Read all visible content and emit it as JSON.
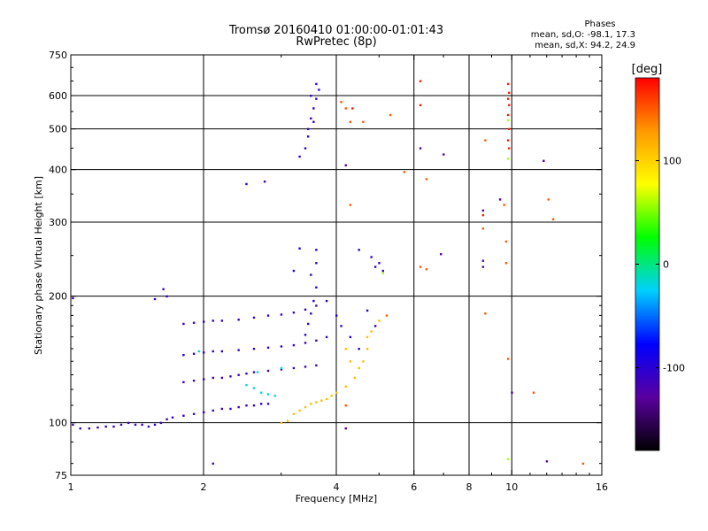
{
  "header": {
    "title": "Tromsø 20160410 01:00:00-01:01:43",
    "subtitle": "RwPretec (8p)"
  },
  "phase_info": {
    "heading": "Phases",
    "line_o": "mean, sd,O: -98.1, 17.3",
    "line_x": "mean, sd,X: 94.2, 24.9"
  },
  "chart_data": {
    "type": "scatter",
    "title": "Tromsø 20160410 01:00:00-01:01:43",
    "subtitle": "RwPretec (8p)",
    "xlabel": "Frequency [MHz]",
    "ylabel": "Stationary phase Virtual Height [km]",
    "x_scale": "log",
    "y_scale": "log",
    "xlim": [
      1,
      16
    ],
    "ylim": [
      75,
      750
    ],
    "x_ticks": [
      1,
      2,
      4,
      6,
      8,
      10,
      16
    ],
    "x_tick_labels": [
      "1",
      "2",
      "4",
      "6",
      "8",
      "10",
      "16"
    ],
    "y_ticks": [
      75,
      100,
      200,
      300,
      400,
      500,
      600,
      750
    ],
    "y_tick_labels": [
      "75",
      "100",
      "200",
      "300",
      "400",
      "500",
      "600",
      "750"
    ],
    "grid": true,
    "colorbar": {
      "label": "[deg]",
      "range": [
        -180,
        180
      ],
      "ticks": [
        100,
        0,
        -100
      ],
      "tick_labels": [
        "100",
        "0",
        "-100"
      ],
      "colors": [
        "#000000",
        "#5a00a0",
        "#0000ff",
        "#00d0ff",
        "#00ff00",
        "#ffff00",
        "#ff9900",
        "#ff0000"
      ]
    },
    "series": [
      {
        "phase": -110,
        "points": [
          [
            1.01,
            99
          ],
          [
            1.05,
            97
          ],
          [
            1.1,
            97
          ],
          [
            1.15,
            97.5
          ],
          [
            1.2,
            98
          ],
          [
            1.25,
            98
          ],
          [
            1.3,
            99
          ],
          [
            1.35,
            100
          ],
          [
            1.4,
            99
          ],
          [
            1.45,
            99
          ],
          [
            1.5,
            98
          ],
          [
            1.55,
            99
          ],
          [
            1.6,
            100
          ],
          [
            1.65,
            102
          ],
          [
            1.7,
            103
          ],
          [
            1.8,
            104
          ],
          [
            1.9,
            105
          ],
          [
            2.0,
            106
          ],
          [
            2.1,
            107
          ],
          [
            2.2,
            108
          ],
          [
            2.3,
            108
          ],
          [
            2.4,
            109
          ],
          [
            2.5,
            110
          ],
          [
            2.6,
            110
          ],
          [
            2.7,
            111
          ],
          [
            2.8,
            111
          ],
          [
            1.01,
            198
          ],
          [
            1.55,
            197
          ],
          [
            1.65,
            200
          ],
          [
            1.62,
            208
          ]
        ]
      },
      {
        "phase": -110,
        "points": [
          [
            1.8,
            125
          ],
          [
            1.9,
            126
          ],
          [
            2.0,
            127
          ],
          [
            2.1,
            128
          ],
          [
            2.2,
            128
          ],
          [
            2.3,
            129
          ],
          [
            2.4,
            130
          ],
          [
            2.5,
            131
          ],
          [
            2.6,
            132
          ],
          [
            2.8,
            133
          ],
          [
            3.0,
            134
          ],
          [
            3.2,
            135
          ],
          [
            3.4,
            136
          ],
          [
            3.6,
            137
          ]
        ]
      },
      {
        "phase": -105,
        "points": [
          [
            1.8,
            145
          ],
          [
            1.9,
            146
          ],
          [
            2.0,
            147
          ],
          [
            2.1,
            148
          ],
          [
            2.2,
            148
          ],
          [
            2.4,
            149
          ],
          [
            2.6,
            150
          ],
          [
            2.8,
            151
          ],
          [
            3.0,
            152
          ],
          [
            3.2,
            153
          ],
          [
            3.4,
            155
          ],
          [
            3.6,
            157
          ],
          [
            3.8,
            160
          ]
        ]
      },
      {
        "phase": -110,
        "points": [
          [
            1.8,
            172
          ],
          [
            1.9,
            173
          ],
          [
            2.0,
            174
          ],
          [
            2.1,
            175
          ],
          [
            2.2,
            175
          ],
          [
            2.4,
            176
          ],
          [
            2.6,
            178
          ],
          [
            2.8,
            180
          ],
          [
            3.0,
            181
          ],
          [
            3.2,
            183
          ],
          [
            3.4,
            186
          ],
          [
            3.6,
            190
          ]
        ]
      },
      {
        "phase": -100,
        "points": [
          [
            3.4,
            162
          ],
          [
            3.45,
            172
          ],
          [
            3.5,
            182
          ],
          [
            3.55,
            195
          ],
          [
            3.6,
            210
          ],
          [
            3.5,
            225
          ],
          [
            3.6,
            240
          ],
          [
            3.3,
            260
          ],
          [
            3.2,
            230
          ],
          [
            3.6,
            258
          ],
          [
            3.8,
            195
          ],
          [
            4.0,
            180
          ],
          [
            4.1,
            170
          ],
          [
            4.3,
            160
          ],
          [
            4.5,
            150
          ],
          [
            4.7,
            185
          ],
          [
            4.9,
            170
          ]
        ]
      },
      {
        "phase": -105,
        "points": [
          [
            3.45,
            500
          ],
          [
            3.5,
            530
          ],
          [
            3.55,
            560
          ],
          [
            3.6,
            590
          ],
          [
            3.65,
            620
          ],
          [
            3.6,
            640
          ],
          [
            3.5,
            600
          ],
          [
            3.55,
            520
          ],
          [
            3.45,
            480
          ],
          [
            3.3,
            430
          ],
          [
            3.4,
            450
          ],
          [
            2.5,
            370
          ],
          [
            2.75,
            375
          ],
          [
            4.5,
            258
          ],
          [
            4.8,
            248
          ],
          [
            5.0,
            240
          ],
          [
            5.1,
            230
          ],
          [
            4.9,
            235
          ]
        ]
      },
      {
        "phase": -20,
        "points": [
          [
            2.5,
            123
          ],
          [
            2.6,
            121
          ],
          [
            2.7,
            118
          ],
          [
            2.8,
            117
          ],
          [
            2.9,
            116
          ],
          [
            3.0,
            135
          ],
          [
            2.65,
            132
          ],
          [
            1.95,
            148
          ]
        ]
      },
      {
        "phase": 110,
        "points": [
          [
            3.0,
            100
          ],
          [
            3.1,
            101
          ],
          [
            3.2,
            105
          ],
          [
            3.3,
            107
          ],
          [
            3.4,
            109
          ],
          [
            3.5,
            111
          ],
          [
            3.6,
            112
          ],
          [
            3.7,
            113
          ],
          [
            3.8,
            114
          ],
          [
            3.9,
            116
          ],
          [
            4.0,
            118
          ],
          [
            4.2,
            122
          ],
          [
            4.4,
            128
          ],
          [
            4.5,
            135
          ],
          [
            4.6,
            140
          ],
          [
            4.7,
            150
          ],
          [
            4.7,
            160
          ],
          [
            4.8,
            165
          ],
          [
            5.0,
            175
          ],
          [
            4.2,
            150
          ],
          [
            4.3,
            140
          ]
        ]
      },
      {
        "phase": 150,
        "points": [
          [
            4.1,
            580
          ],
          [
            4.2,
            560
          ],
          [
            4.3,
            520
          ],
          [
            4.6,
            520
          ],
          [
            5.3,
            540
          ],
          [
            5.7,
            395
          ],
          [
            6.4,
            380
          ],
          [
            4.3,
            330
          ],
          [
            6.2,
            235
          ],
          [
            6.4,
            232
          ],
          [
            8.7,
            470
          ],
          [
            8.6,
            290
          ],
          [
            9.6,
            330
          ],
          [
            9.7,
            270
          ],
          [
            9.7,
            240
          ],
          [
            5.2,
            180
          ],
          [
            8.7,
            182
          ],
          [
            9.8,
            142
          ],
          [
            11.2,
            118
          ],
          [
            12.1,
            340
          ],
          [
            12.4,
            305
          ],
          [
            14.5,
            80
          ],
          [
            4.2,
            110
          ]
        ]
      },
      {
        "phase": 170,
        "points": [
          [
            9.8,
            640
          ],
          [
            9.85,
            610
          ],
          [
            9.8,
            590
          ],
          [
            9.85,
            570
          ],
          [
            9.8,
            540
          ],
          [
            9.85,
            500
          ],
          [
            9.8,
            470
          ],
          [
            9.85,
            450
          ],
          [
            4.35,
            560
          ],
          [
            6.2,
            650
          ],
          [
            6.2,
            570
          ],
          [
            8.6,
            312
          ]
        ]
      },
      {
        "phase": 60,
        "points": [
          [
            9.8,
            525
          ],
          [
            9.8,
            425
          ],
          [
            9.8,
            82
          ],
          [
            5.1,
            227
          ]
        ]
      },
      {
        "phase": -125,
        "points": [
          [
            4.2,
            410
          ],
          [
            6.2,
            450
          ],
          [
            7.0,
            435
          ],
          [
            11.8,
            420
          ],
          [
            6.9,
            252
          ],
          [
            8.6,
            243
          ],
          [
            8.6,
            235
          ],
          [
            9.4,
            340
          ],
          [
            8.6,
            320
          ],
          [
            10.0,
            118
          ],
          [
            12.0,
            81
          ],
          [
            2.1,
            80
          ],
          [
            4.2,
            97
          ]
        ]
      }
    ]
  }
}
